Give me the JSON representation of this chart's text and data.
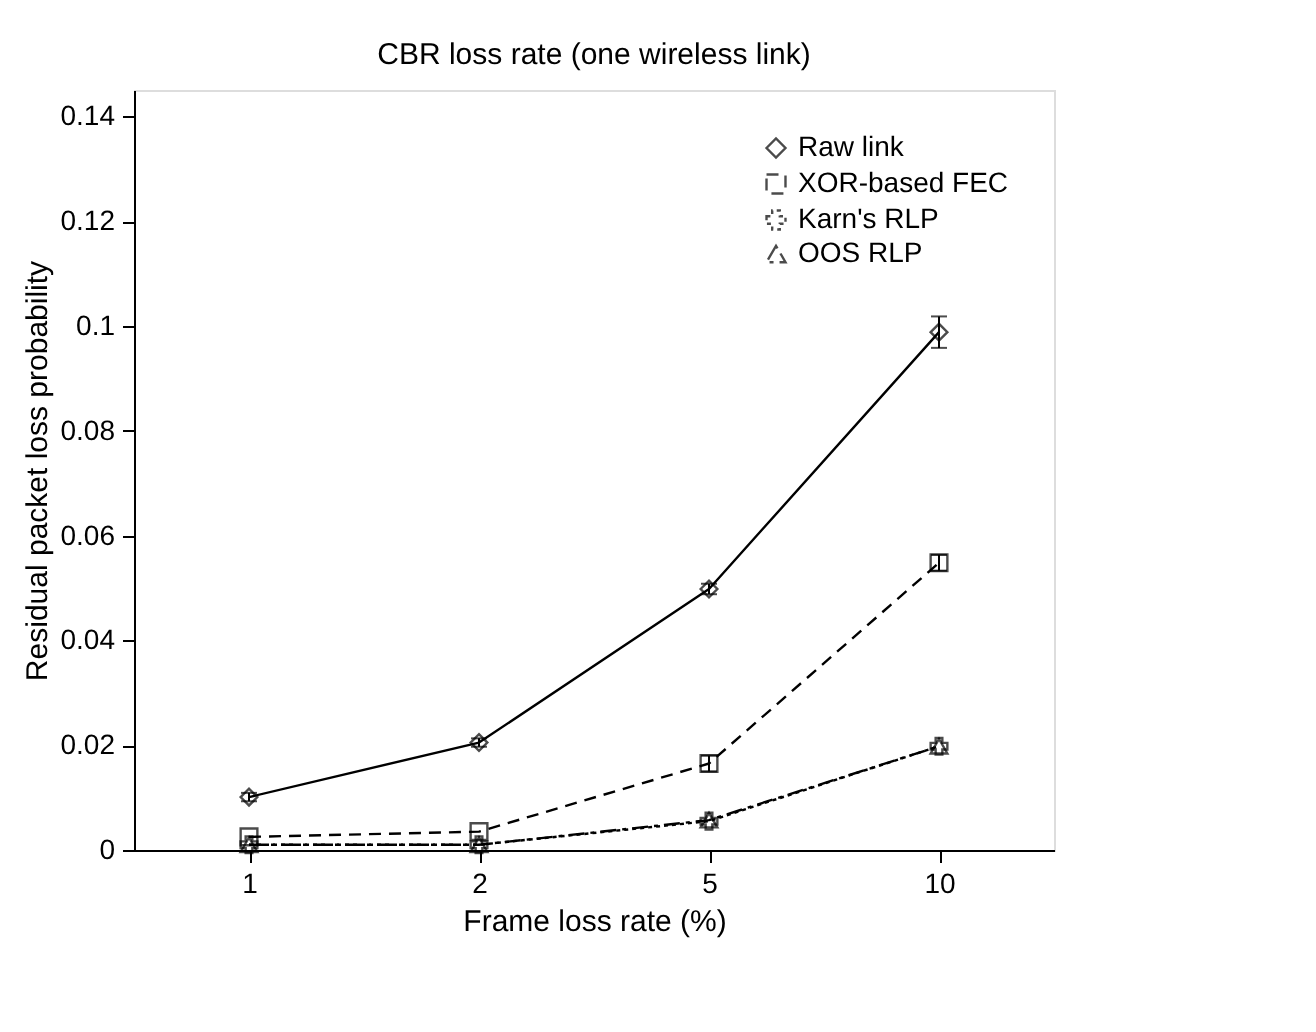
{
  "chart_data": {
    "type": "line",
    "title": "CBR loss rate (one wireless link)",
    "xlabel": "Frame loss rate (%)",
    "ylabel": "Residual packet loss probability",
    "categories": [
      "1",
      "2",
      "5",
      "10"
    ],
    "series": [
      {
        "name": "Raw link",
        "color": "#000000",
        "marker": "diamond",
        "line_style": "solid",
        "values": [
          0.0101,
          0.0205,
          0.0498,
          0.0988
        ],
        "errors": [
          0.0008,
          0.0008,
          0.001,
          0.003
        ]
      },
      {
        "name": "XOR-based FEC",
        "color": "#000000",
        "marker": "square",
        "line_style": "dashed",
        "values": [
          0.0025,
          0.0035,
          0.0165,
          0.0548
        ],
        "errors": [
          null,
          null,
          0.0015,
          0.0015
        ]
      },
      {
        "name": "Karn's RLP",
        "color": "#000000",
        "marker": "cross",
        "line_style": "dotted",
        "values": [
          0.001,
          0.001,
          0.0055,
          0.0198
        ]
      },
      {
        "name": "OOS RLP",
        "color": "#000000",
        "marker": "triangle",
        "line_style": "dashdot",
        "values": [
          0.001,
          0.001,
          0.0057,
          0.0198
        ]
      }
    ],
    "ylim": [
      0,
      0.145
    ],
    "yticks": [
      0,
      0.02,
      0.04,
      0.06,
      0.08,
      0.1,
      0.12,
      0.14
    ],
    "grid": false,
    "legend": "top right"
  }
}
